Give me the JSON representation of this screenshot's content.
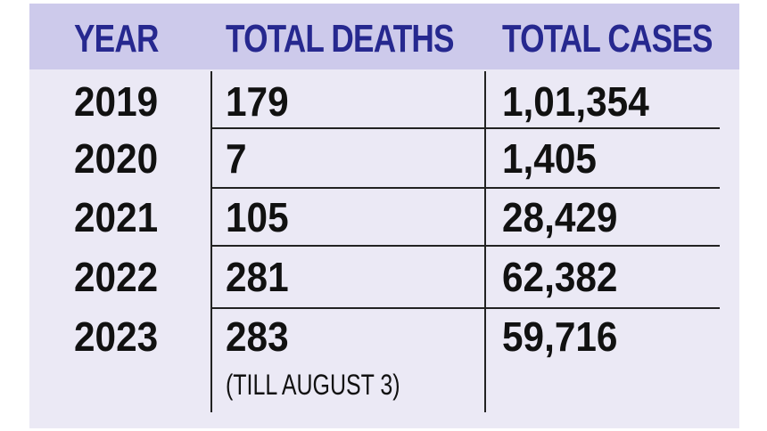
{
  "chart_data": {
    "type": "table",
    "columns": [
      "YEAR",
      "TOTAL DEATHS",
      "TOTAL CASES"
    ],
    "rows": [
      {
        "year": "2019",
        "deaths": "179",
        "cases": "1,01,354",
        "note": ""
      },
      {
        "year": "2020",
        "deaths": "7",
        "cases": "1,405",
        "note": ""
      },
      {
        "year": "2021",
        "deaths": "105",
        "cases": "28,429",
        "note": ""
      },
      {
        "year": "2022",
        "deaths": "281",
        "cases": "62,382",
        "note": ""
      },
      {
        "year": "2023",
        "deaths": "283",
        "cases": "59,716",
        "note": "(TILL AUGUST 3)"
      }
    ]
  },
  "colors": {
    "header_bg": "#cdcaeb",
    "header_text": "#26288f",
    "body_bg": "#ebe9f5",
    "text": "#111111"
  }
}
